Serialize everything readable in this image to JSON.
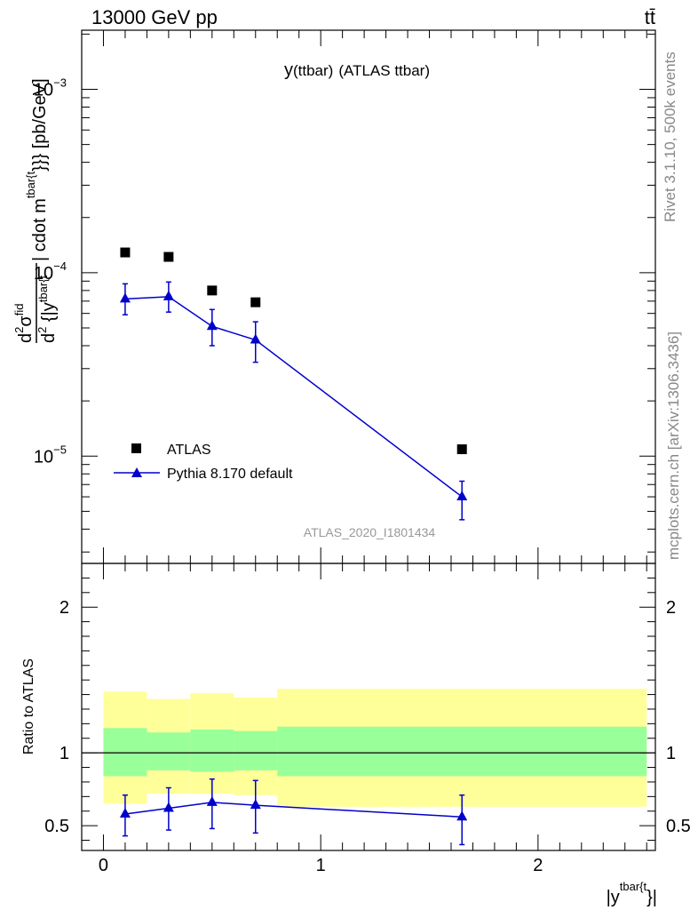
{
  "header": {
    "energy_label": "13000 GeV pp",
    "process_label": "tt̄"
  },
  "side": {
    "rivet_label": "Rivet 3.1.10,  500k events",
    "source_label": "mcplots.cern.ch [arXiv:1306.3436]"
  },
  "chart_data": [
    {
      "type": "scatter",
      "title": "y(ttbar) (ATLAS ttbar)",
      "title_main": "y",
      "title_sub": "(ttbar)",
      "title_rest": "(ATLAS ttbar)",
      "watermark": "ATLAS_2020_I1801434",
      "ylabel_parts": {
        "d": "d",
        "d2": "d",
        "sup2": "2",
        "sigma": "σ",
        "sup_fid": "fid",
        "den_d": "d",
        "den_sup2": "2",
        "den_y": " {|y",
        "den_sub": "tbar{t",
        "rest": "| cdot m",
        "rest_sup": "tbar{t",
        "tail": "}}} [pb/GeV]"
      },
      "yscale": "log",
      "ylim": [
        2.6e-06,
        0.0021
      ],
      "xlim": [
        -0.1,
        2.54
      ],
      "x_ticks": [
        0,
        1,
        2
      ],
      "y_tick_labels": [
        {
          "value": 0.001,
          "base": "10",
          "exp": "−3"
        },
        {
          "value": 0.0001,
          "base": "10",
          "exp": "−4"
        },
        {
          "value": 1e-05,
          "base": "10",
          "exp": "−5"
        }
      ],
      "legend_position": "bottom-left",
      "series": [
        {
          "name": "ATLAS",
          "marker": "square",
          "color": "#000000",
          "x": [
            0.1,
            0.3,
            0.5,
            0.7,
            1.65
          ],
          "y": [
            0.000129,
            0.000122,
            8e-05,
            6.9e-05,
            1.09e-05
          ]
        },
        {
          "name": "Pythia 8.170 default",
          "marker": "triangle",
          "color": "#0000cc",
          "x": [
            0.1,
            0.3,
            0.5,
            0.7,
            1.65
          ],
          "y": [
            7.2e-05,
            7.4e-05,
            5.1e-05,
            4.3e-05,
            6e-06
          ],
          "yerr_low": [
            1.3e-05,
            1.3e-05,
            1.1e-05,
            1.05e-05,
            1.5e-06
          ],
          "yerr_high": [
            1.5e-05,
            1.5e-05,
            1.2e-05,
            1.1e-05,
            1.3e-06
          ]
        }
      ]
    },
    {
      "type": "scatter",
      "ylabel": "Ratio to ATLAS",
      "xlabel_main": "|y",
      "xlabel_sup": "tbar{t",
      "xlabel_end": "}|",
      "ylim": [
        0.33,
        2.3
      ],
      "xlim": [
        -0.1,
        2.54
      ],
      "x_ticks": [
        0,
        1,
        2
      ],
      "x_tick_labels": [
        "0",
        "1",
        "2"
      ],
      "y_ticks": [
        0.5,
        1,
        2
      ],
      "y_tick_labels": [
        "0.5",
        "1",
        "2"
      ],
      "reference_line": 1.0,
      "bands": [
        {
          "x0": 0.0,
          "x1": 0.2,
          "yellow": [
            0.65,
            1.42
          ],
          "green": [
            0.84,
            1.17
          ]
        },
        {
          "x0": 0.2,
          "x1": 0.4,
          "yellow": [
            0.72,
            1.37
          ],
          "green": [
            0.88,
            1.14
          ]
        },
        {
          "x0": 0.4,
          "x1": 0.6,
          "yellow": [
            0.72,
            1.41
          ],
          "green": [
            0.87,
            1.16
          ]
        },
        {
          "x0": 0.6,
          "x1": 0.8,
          "yellow": [
            0.71,
            1.38
          ],
          "green": [
            0.88,
            1.15
          ]
        },
        {
          "x0": 0.8,
          "x1": 2.5,
          "yellow": [
            0.63,
            1.44
          ],
          "green": [
            0.84,
            1.18
          ]
        }
      ],
      "series": [
        {
          "name": "Pythia 8.170 default / ATLAS",
          "marker": "triangle",
          "color": "#0000cc",
          "x": [
            0.1,
            0.3,
            0.5,
            0.7,
            1.65
          ],
          "y": [
            0.58,
            0.62,
            0.66,
            0.64,
            0.56
          ],
          "yerr_low": [
            0.15,
            0.15,
            0.18,
            0.19,
            0.19
          ],
          "yerr_high": [
            0.13,
            0.14,
            0.16,
            0.17,
            0.15
          ]
        }
      ]
    }
  ],
  "colors": {
    "band_yellow": "#ffff99",
    "band_green": "#99ff99",
    "mc_blue": "#0000cc",
    "side_gray": "#888888",
    "watermark_gray": "#999999"
  }
}
